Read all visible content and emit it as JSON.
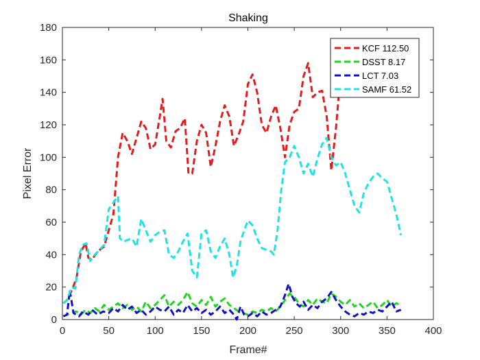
{
  "chart_data": {
    "type": "line",
    "title": "Shaking",
    "xlabel": "Frame#",
    "ylabel": "Pixel Error",
    "xlim": [
      0,
      400
    ],
    "ylim": [
      0,
      180
    ],
    "xticks": [
      0,
      50,
      100,
      150,
      200,
      250,
      300,
      350,
      400
    ],
    "yticks": [
      0,
      20,
      40,
      60,
      80,
      100,
      120,
      140,
      160,
      180
    ],
    "grid": false,
    "legend_position": "top-right",
    "series": [
      {
        "name": "KCF 112.50",
        "color": "#e41a1c",
        "points": [
          [
            1,
            10
          ],
          [
            5,
            12
          ],
          [
            10,
            18
          ],
          [
            15,
            25
          ],
          [
            20,
            42
          ],
          [
            25,
            47
          ],
          [
            28,
            38
          ],
          [
            32,
            37
          ],
          [
            38,
            42
          ],
          [
            45,
            45
          ],
          [
            50,
            55
          ],
          [
            55,
            65
          ],
          [
            60,
            100
          ],
          [
            65,
            115
          ],
          [
            70,
            110
          ],
          [
            75,
            102
          ],
          [
            80,
            112
          ],
          [
            85,
            122
          ],
          [
            90,
            118
          ],
          [
            95,
            105
          ],
          [
            100,
            108
          ],
          [
            105,
            125
          ],
          [
            108,
            136
          ],
          [
            112,
            110
          ],
          [
            117,
            106
          ],
          [
            122,
            116
          ],
          [
            127,
            118
          ],
          [
            132,
            124
          ],
          [
            136,
            90
          ],
          [
            140,
            90
          ],
          [
            145,
            110
          ],
          [
            150,
            120
          ],
          [
            155,
            115
          ],
          [
            160,
            94
          ],
          [
            165,
            107
          ],
          [
            170,
            122
          ],
          [
            175,
            132
          ],
          [
            180,
            125
          ],
          [
            185,
            107
          ],
          [
            190,
            114
          ],
          [
            195,
            122
          ],
          [
            200,
            145
          ],
          [
            205,
            151
          ],
          [
            210,
            140
          ],
          [
            215,
            120
          ],
          [
            220,
            115
          ],
          [
            225,
            125
          ],
          [
            230,
            132
          ],
          [
            235,
            118
          ],
          [
            240,
            100
          ],
          [
            245,
            120
          ],
          [
            250,
            128
          ],
          [
            255,
            130
          ],
          [
            260,
            150
          ],
          [
            265,
            158
          ],
          [
            270,
            137
          ],
          [
            275,
            140
          ],
          [
            280,
            141
          ],
          [
            285,
            125
          ],
          [
            290,
            92
          ],
          [
            295,
            118
          ],
          [
            298,
            138
          ]
        ]
      },
      {
        "name": "DSST 8.17",
        "color": "#1fd41f",
        "points": [
          [
            1,
            2
          ],
          [
            5,
            3
          ],
          [
            10,
            4
          ],
          [
            15,
            5
          ],
          [
            20,
            3
          ],
          [
            25,
            6
          ],
          [
            30,
            4
          ],
          [
            35,
            7
          ],
          [
            40,
            5
          ],
          [
            45,
            9
          ],
          [
            50,
            6
          ],
          [
            55,
            8
          ],
          [
            60,
            10
          ],
          [
            65,
            7
          ],
          [
            70,
            9
          ],
          [
            75,
            6
          ],
          [
            80,
            8
          ],
          [
            85,
            5
          ],
          [
            90,
            11
          ],
          [
            95,
            7
          ],
          [
            100,
            9
          ],
          [
            105,
            12
          ],
          [
            110,
            15
          ],
          [
            115,
            8
          ],
          [
            120,
            11
          ],
          [
            125,
            9
          ],
          [
            130,
            12
          ],
          [
            135,
            17
          ],
          [
            140,
            10
          ],
          [
            145,
            8
          ],
          [
            150,
            12
          ],
          [
            155,
            9
          ],
          [
            160,
            14
          ],
          [
            165,
            8
          ],
          [
            170,
            11
          ],
          [
            175,
            13
          ],
          [
            180,
            9
          ],
          [
            185,
            7
          ],
          [
            190,
            5
          ],
          [
            195,
            4
          ],
          [
            200,
            3
          ],
          [
            205,
            5
          ],
          [
            210,
            4
          ],
          [
            215,
            6
          ],
          [
            220,
            5
          ],
          [
            225,
            7
          ],
          [
            230,
            5
          ],
          [
            235,
            8
          ],
          [
            240,
            12
          ],
          [
            245,
            16
          ],
          [
            250,
            14
          ],
          [
            255,
            10
          ],
          [
            260,
            8
          ],
          [
            265,
            12
          ],
          [
            270,
            9
          ],
          [
            275,
            13
          ],
          [
            280,
            11
          ],
          [
            285,
            10
          ],
          [
            290,
            16
          ],
          [
            295,
            14
          ],
          [
            300,
            11
          ],
          [
            305,
            9
          ],
          [
            310,
            12
          ],
          [
            315,
            8
          ],
          [
            320,
            10
          ],
          [
            325,
            7
          ],
          [
            330,
            9
          ],
          [
            335,
            11
          ],
          [
            340,
            7
          ],
          [
            345,
            9
          ],
          [
            350,
            12
          ],
          [
            355,
            8
          ],
          [
            360,
            10
          ],
          [
            365,
            9
          ]
        ]
      },
      {
        "name": "LCT 7.03",
        "color": "#1010c8",
        "points": [
          [
            1,
            2
          ],
          [
            5,
            3
          ],
          [
            8,
            18
          ],
          [
            12,
            4
          ],
          [
            18,
            2
          ],
          [
            22,
            5
          ],
          [
            28,
            3
          ],
          [
            32,
            6
          ],
          [
            38,
            3
          ],
          [
            44,
            5
          ],
          [
            50,
            4
          ],
          [
            55,
            7
          ],
          [
            60,
            5
          ],
          [
            65,
            9
          ],
          [
            70,
            6
          ],
          [
            75,
            8
          ],
          [
            80,
            4
          ],
          [
            85,
            6
          ],
          [
            90,
            3
          ],
          [
            95,
            5
          ],
          [
            100,
            8
          ],
          [
            105,
            6
          ],
          [
            110,
            5
          ],
          [
            115,
            8
          ],
          [
            120,
            3
          ],
          [
            125,
            6
          ],
          [
            130,
            4
          ],
          [
            135,
            9
          ],
          [
            140,
            5
          ],
          [
            145,
            7
          ],
          [
            150,
            4
          ],
          [
            155,
            6
          ],
          [
            160,
            3
          ],
          [
            165,
            5
          ],
          [
            170,
            8
          ],
          [
            175,
            4
          ],
          [
            180,
            6
          ],
          [
            185,
            3
          ],
          [
            188,
            0
          ],
          [
            192,
            8
          ],
          [
            196,
            3
          ],
          [
            200,
            2
          ],
          [
            205,
            4
          ],
          [
            210,
            2
          ],
          [
            215,
            5
          ],
          [
            220,
            3
          ],
          [
            225,
            4
          ],
          [
            230,
            6
          ],
          [
            235,
            8
          ],
          [
            240,
            15
          ],
          [
            244,
            22
          ],
          [
            248,
            14
          ],
          [
            252,
            10
          ],
          [
            256,
            8
          ],
          [
            260,
            11
          ],
          [
            265,
            6
          ],
          [
            270,
            9
          ],
          [
            275,
            7
          ],
          [
            280,
            11
          ],
          [
            285,
            13
          ],
          [
            290,
            17
          ],
          [
            295,
            12
          ],
          [
            300,
            8
          ],
          [
            305,
            5
          ],
          [
            310,
            3
          ],
          [
            315,
            2
          ],
          [
            320,
            4
          ],
          [
            325,
            3
          ],
          [
            330,
            5
          ],
          [
            335,
            4
          ],
          [
            340,
            6
          ],
          [
            345,
            5
          ],
          [
            350,
            8
          ],
          [
            355,
            11
          ],
          [
            360,
            5
          ],
          [
            365,
            6
          ]
        ]
      },
      {
        "name": "SAMF 61.52",
        "color": "#1fe3e3",
        "points": [
          [
            1,
            10
          ],
          [
            5,
            12
          ],
          [
            10,
            20
          ],
          [
            14,
            19
          ],
          [
            18,
            40
          ],
          [
            22,
            46
          ],
          [
            26,
            47
          ],
          [
            30,
            36
          ],
          [
            35,
            40
          ],
          [
            40,
            43
          ],
          [
            45,
            46
          ],
          [
            50,
            68
          ],
          [
            55,
            72
          ],
          [
            60,
            76
          ],
          [
            62,
            50
          ],
          [
            66,
            48
          ],
          [
            70,
            49
          ],
          [
            75,
            50
          ],
          [
            80,
            45
          ],
          [
            85,
            62
          ],
          [
            90,
            55
          ],
          [
            95,
            48
          ],
          [
            100,
            52
          ],
          [
            105,
            54
          ],
          [
            110,
            55
          ],
          [
            115,
            40
          ],
          [
            120,
            38
          ],
          [
            125,
            42
          ],
          [
            130,
            48
          ],
          [
            135,
            53
          ],
          [
            140,
            30
          ],
          [
            145,
            26
          ],
          [
            150,
            53
          ],
          [
            155,
            55
          ],
          [
            160,
            42
          ],
          [
            165,
            38
          ],
          [
            170,
            45
          ],
          [
            175,
            50
          ],
          [
            180,
            40
          ],
          [
            184,
            26
          ],
          [
            188,
            33
          ],
          [
            192,
            48
          ],
          [
            196,
            55
          ],
          [
            200,
            61
          ],
          [
            205,
            58
          ],
          [
            210,
            50
          ],
          [
            215,
            44
          ],
          [
            220,
            43
          ],
          [
            225,
            42
          ],
          [
            228,
            40
          ],
          [
            232,
            55
          ],
          [
            236,
            80
          ],
          [
            240,
            97
          ],
          [
            245,
            100
          ],
          [
            250,
            107
          ],
          [
            255,
            100
          ],
          [
            260,
            90
          ],
          [
            265,
            96
          ],
          [
            270,
            88
          ],
          [
            275,
            99
          ],
          [
            280,
            108
          ],
          [
            285,
            112
          ],
          [
            290,
            100
          ],
          [
            295,
            95
          ],
          [
            300,
            97
          ],
          [
            305,
            90
          ],
          [
            310,
            80
          ],
          [
            315,
            70
          ],
          [
            320,
            66
          ],
          [
            325,
            78
          ],
          [
            330,
            84
          ],
          [
            335,
            88
          ],
          [
            340,
            90
          ],
          [
            345,
            87
          ],
          [
            350,
            85
          ],
          [
            355,
            75
          ],
          [
            360,
            65
          ],
          [
            365,
            52
          ]
        ]
      }
    ]
  }
}
